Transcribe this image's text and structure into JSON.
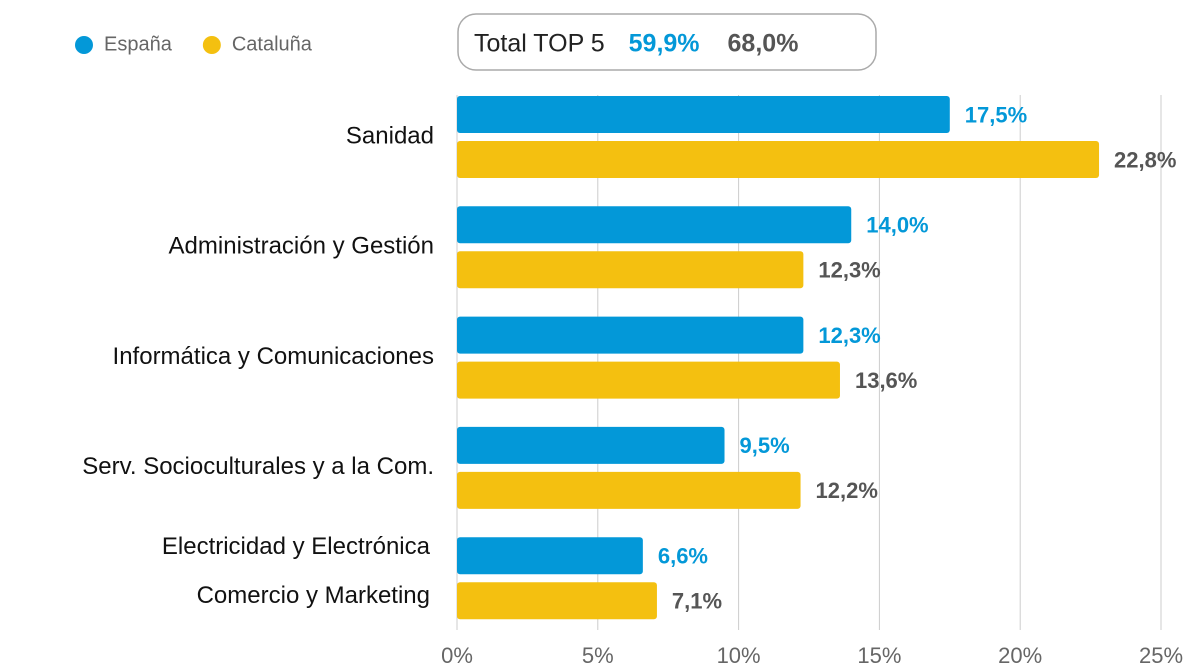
{
  "chart_data": {
    "type": "barh",
    "categories": [
      [
        "Sanidad"
      ],
      [
        "Administración y Gestión"
      ],
      [
        "Informática y Comunicaciones"
      ],
      [
        "Serv. Socioculturales y a la Com."
      ],
      [
        "Electricidad y Electrónica",
        "Comercio y Marketing"
      ]
    ],
    "series": [
      {
        "name": "España",
        "color": "#0398d8",
        "label_color": "#0398d8",
        "values": [
          17.5,
          14.0,
          12.3,
          9.5,
          6.6
        ],
        "value_labels": [
          "17,5%",
          "14,0%",
          "12,3%",
          "9,5%",
          "6,6%"
        ]
      },
      {
        "name": "Cataluña",
        "color": "#f4c010",
        "label_color": "#555555",
        "values": [
          22.8,
          12.3,
          13.6,
          12.2,
          7.1
        ],
        "value_labels": [
          "22,8%",
          "12,3%",
          "13,6%",
          "12,2%",
          "7,1%"
        ]
      }
    ],
    "total": {
      "label": "Total TOP 5",
      "values": [
        59.9,
        68.0
      ],
      "value_labels": [
        "59,9%",
        "68,0%"
      ]
    },
    "xlim": [
      0,
      25
    ],
    "xticks": [
      {
        "value": 0,
        "label": "0%"
      },
      {
        "value": 5,
        "label": "5%"
      },
      {
        "value": 10,
        "label": "10%"
      },
      {
        "value": 15,
        "label": "15%"
      },
      {
        "value": 20,
        "label": "20%"
      },
      {
        "value": 25,
        "label": "25%"
      }
    ],
    "grid": true,
    "legend": "top-left"
  }
}
